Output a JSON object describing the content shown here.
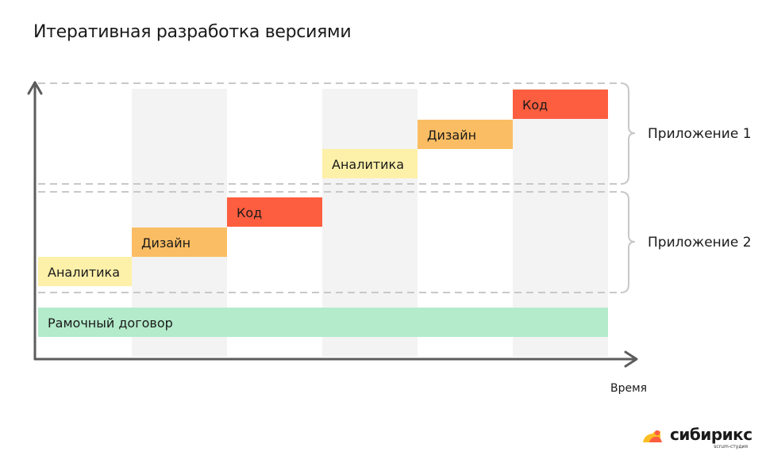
{
  "title": "Итеративная разработка версиями",
  "axis": {
    "x_label": "Время"
  },
  "colors": {
    "analytics": "#fdf0a9",
    "design": "#fbbd63",
    "code": "#fd5e3f",
    "contract": "#b3ebcb",
    "column_shade": "#f3f3f3",
    "axis": "#5c5c5c",
    "dashed": "#c8c8c8"
  },
  "groups": [
    {
      "label": "Приложение 1"
    },
    {
      "label": "Приложение 2"
    }
  ],
  "stages": [
    {
      "label": "Аналитика",
      "kind": "analytics",
      "app": 2,
      "column": 1,
      "level": 1
    },
    {
      "label": "Дизайн",
      "kind": "design",
      "app": 2,
      "column": 2,
      "level": 2
    },
    {
      "label": "Код",
      "kind": "code",
      "app": 2,
      "column": 3,
      "level": 3
    },
    {
      "label": "Аналитика",
      "kind": "analytics",
      "app": 1,
      "column": 4,
      "level": 4
    },
    {
      "label": "Дизайн",
      "kind": "design",
      "app": 1,
      "column": 5,
      "level": 5
    },
    {
      "label": "Код",
      "kind": "code",
      "app": 1,
      "column": 6,
      "level": 6
    }
  ],
  "contract": {
    "label": "Рамочный договор",
    "kind": "contract"
  },
  "logo": {
    "name": "сибирикс",
    "tagline": "scrum-студия"
  }
}
